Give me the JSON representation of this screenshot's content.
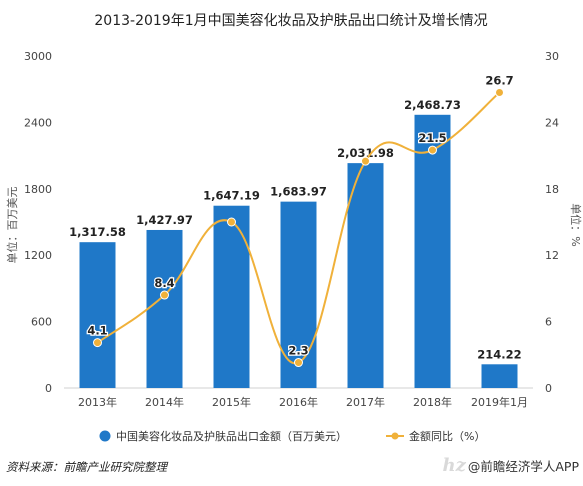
{
  "chart_data": {
    "type": "bar+line",
    "title": "2013-2019年1月中国美容化妆品及护肤品出口统计及增长情况",
    "categories": [
      "2013年",
      "2014年",
      "2015年",
      "2016年",
      "2017年",
      "2018年",
      "2019年1月"
    ],
    "series": [
      {
        "name": "中国美容化妆品及护肤品出口金额（百万美元）",
        "type": "bar",
        "axis": "left",
        "values": [
          1317.58,
          1427.97,
          1647.19,
          1683.97,
          2031.98,
          2468.73,
          214.22
        ],
        "labels": [
          "1,317.58",
          "1,427.97",
          "1,647.19",
          "1,683.97",
          "2,031.98",
          "2,468.73",
          "214.22"
        ],
        "color": "#1f78c8"
      },
      {
        "name": "金额同比（%）",
        "type": "line",
        "axis": "right",
        "values": [
          4.1,
          8.4,
          15.0,
          2.3,
          20.5,
          21.5,
          26.7
        ],
        "labels": [
          "4.1",
          "8.4",
          "",
          "2.3",
          "",
          "21.5",
          "26.7"
        ],
        "color": "#f0b13a"
      }
    ],
    "y_left": {
      "label": "单位：百万美元",
      "min": 0,
      "max": 3000,
      "ticks": [
        "0",
        "600",
        "1200",
        "1800",
        "2400",
        "3000"
      ]
    },
    "y_right": {
      "label": "单位：%",
      "min": 0,
      "max": 30,
      "ticks": [
        "0",
        "6",
        "12",
        "18",
        "24",
        "30"
      ]
    },
    "legend_position": "bottom",
    "grid": false
  },
  "footer": {
    "source": "资料来源：前瞻产业研究院整理",
    "watermark": "hz",
    "brand": "@前瞻经济学人APP"
  }
}
